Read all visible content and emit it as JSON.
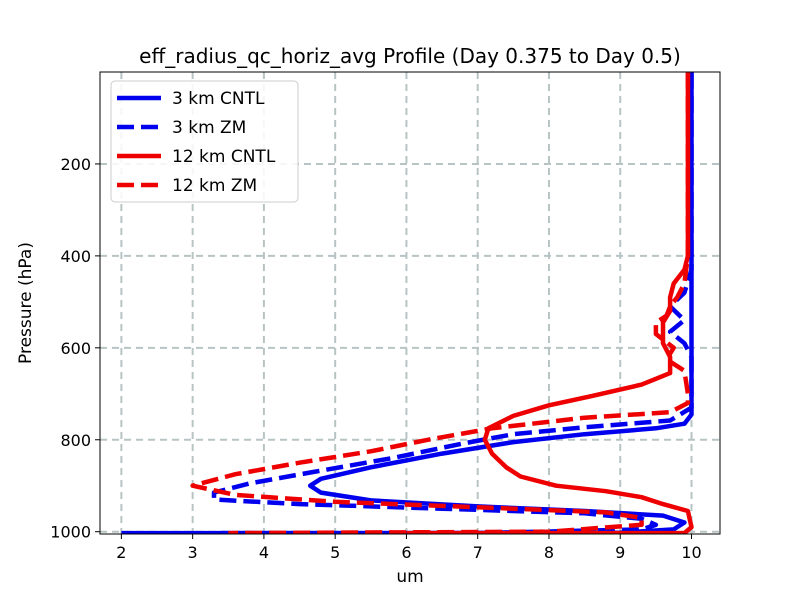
{
  "chart_data": {
    "type": "line",
    "title": "eff_radius_qc_horiz_avg Profile (Day 0.375 to Day 0.5)",
    "xlabel": "um",
    "ylabel": "Pressure (hPa)",
    "xlim": [
      1.7,
      10.4
    ],
    "ylim": [
      1005,
      0
    ],
    "y_inverted": true,
    "x_ticks": [
      2,
      3,
      4,
      5,
      6,
      7,
      8,
      9,
      10
    ],
    "y_ticks": [
      200,
      400,
      600,
      800,
      1000
    ],
    "grid": true,
    "legend_position": "upper-left",
    "series": [
      {
        "name": "3 km CNTL",
        "color": "#0000ee",
        "dash": "solid",
        "points": [
          [
            10.0,
            0
          ],
          [
            10.0,
            400
          ],
          [
            10.0,
            600
          ],
          [
            10.0,
            700
          ],
          [
            10.0,
            745
          ],
          [
            9.9,
            765
          ],
          [
            9.5,
            775
          ],
          [
            8.5,
            788
          ],
          [
            7.5,
            805
          ],
          [
            6.5,
            830
          ],
          [
            5.5,
            860
          ],
          [
            4.8,
            885
          ],
          [
            4.65,
            900
          ],
          [
            4.8,
            915
          ],
          [
            5.5,
            932
          ],
          [
            7.0,
            945
          ],
          [
            8.5,
            955
          ],
          [
            9.6,
            965
          ],
          [
            9.9,
            980
          ],
          [
            9.75,
            995
          ],
          [
            9.0,
            1002
          ],
          [
            6.0,
            1003
          ],
          [
            2.0,
            1003
          ]
        ]
      },
      {
        "name": "3 km ZM",
        "color": "#0000ee",
        "dash": "dashed",
        "points": [
          [
            10.0,
            0
          ],
          [
            10.0,
            430
          ],
          [
            9.9,
            480
          ],
          [
            9.7,
            510
          ],
          [
            9.9,
            540
          ],
          [
            9.7,
            565
          ],
          [
            9.9,
            590
          ],
          [
            10.0,
            620
          ],
          [
            10.0,
            730
          ],
          [
            9.7,
            758
          ],
          [
            8.5,
            773
          ],
          [
            7.5,
            788
          ],
          [
            6.8,
            808
          ],
          [
            5.8,
            840
          ],
          [
            4.7,
            870
          ],
          [
            3.8,
            895
          ],
          [
            3.3,
            915
          ],
          [
            3.3,
            930
          ],
          [
            4.5,
            940
          ],
          [
            6.5,
            950
          ],
          [
            8.5,
            960
          ],
          [
            9.3,
            972
          ],
          [
            9.5,
            985
          ],
          [
            9.3,
            995
          ],
          [
            7.0,
            1003
          ],
          [
            3.4,
            1003
          ]
        ]
      },
      {
        "name": "12 km CNTL",
        "color": "#ee0000",
        "dash": "solid",
        "points": [
          [
            9.95,
            0
          ],
          [
            9.95,
            200
          ],
          [
            9.95,
            400
          ],
          [
            9.9,
            430
          ],
          [
            9.75,
            460
          ],
          [
            9.7,
            490
          ],
          [
            9.7,
            520
          ],
          [
            9.6,
            545
          ],
          [
            9.6,
            590
          ],
          [
            9.7,
            620
          ],
          [
            9.7,
            655
          ],
          [
            9.3,
            680
          ],
          [
            8.6,
            705
          ],
          [
            8.0,
            725
          ],
          [
            7.5,
            748
          ],
          [
            7.15,
            775
          ],
          [
            7.1,
            800
          ],
          [
            7.2,
            830
          ],
          [
            7.4,
            860
          ],
          [
            7.6,
            880
          ],
          [
            8.1,
            900
          ],
          [
            8.8,
            912
          ],
          [
            9.3,
            925
          ],
          [
            9.6,
            940
          ],
          [
            9.95,
            955
          ],
          [
            10.0,
            990
          ],
          [
            9.9,
            1003
          ],
          [
            8.5,
            1003
          ],
          [
            6.0,
            1003
          ]
        ]
      },
      {
        "name": "12 km ZM",
        "color": "#ee0000",
        "dash": "dashed",
        "points": [
          [
            9.95,
            0
          ],
          [
            9.95,
            400
          ],
          [
            9.9,
            460
          ],
          [
            9.8,
            490
          ],
          [
            9.7,
            510
          ],
          [
            9.65,
            530
          ],
          [
            9.5,
            545
          ],
          [
            9.5,
            570
          ],
          [
            9.75,
            600
          ],
          [
            9.65,
            625
          ],
          [
            9.9,
            650
          ],
          [
            9.95,
            700
          ],
          [
            9.95,
            720
          ],
          [
            9.7,
            740
          ],
          [
            8.5,
            752
          ],
          [
            7.2,
            775
          ],
          [
            6.3,
            800
          ],
          [
            5.5,
            825
          ],
          [
            4.5,
            850
          ],
          [
            3.6,
            875
          ],
          [
            3.0,
            900
          ],
          [
            3.6,
            920
          ],
          [
            5.0,
            935
          ],
          [
            7.2,
            948
          ],
          [
            8.8,
            958
          ],
          [
            9.3,
            970
          ],
          [
            9.3,
            985
          ],
          [
            8.0,
            1000
          ],
          [
            3.5,
            1003
          ]
        ]
      }
    ]
  }
}
